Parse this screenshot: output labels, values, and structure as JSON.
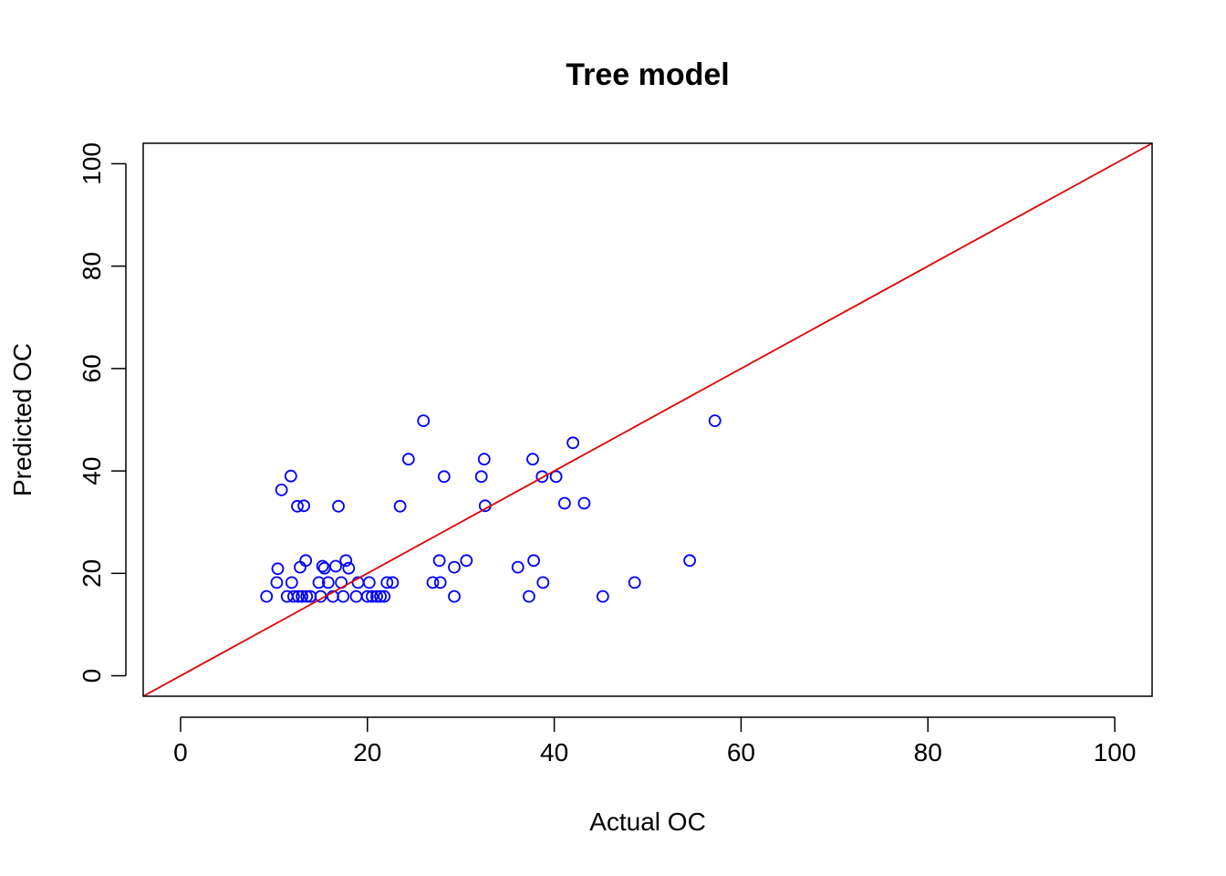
{
  "chart_data": {
    "type": "scatter",
    "title": "Tree model",
    "xlabel": "Actual OC",
    "ylabel": "Predicted OC",
    "xlim": [
      -4,
      104
    ],
    "ylim": [
      -4,
      104
    ],
    "x_ticks": [
      0,
      20,
      40,
      60,
      80,
      100
    ],
    "y_ticks": [
      0,
      20,
      40,
      60,
      80,
      100
    ],
    "grid": false,
    "legend": "none",
    "point_color": "#0000ff",
    "line_color": "#e00000",
    "reference_line": {
      "intercept": 0,
      "slope": 1
    },
    "points": [
      [
        9.2,
        15.5
      ],
      [
        10.3,
        18.2
      ],
      [
        10.4,
        20.9
      ],
      [
        10.8,
        36.3
      ],
      [
        11.4,
        15.5
      ],
      [
        11.8,
        39.0
      ],
      [
        11.9,
        18.2
      ],
      [
        12.1,
        15.5
      ],
      [
        12.5,
        33.1
      ],
      [
        12.6,
        15.5
      ],
      [
        12.8,
        21.2
      ],
      [
        13.0,
        15.5
      ],
      [
        13.2,
        33.2
      ],
      [
        13.4,
        22.5
      ],
      [
        13.5,
        15.5
      ],
      [
        13.9,
        15.5
      ],
      [
        14.8,
        18.2
      ],
      [
        15.0,
        15.5
      ],
      [
        15.2,
        21.4
      ],
      [
        15.4,
        21.0
      ],
      [
        15.8,
        18.2
      ],
      [
        16.3,
        15.5
      ],
      [
        16.6,
        21.4
      ],
      [
        16.9,
        33.1
      ],
      [
        17.2,
        18.2
      ],
      [
        17.4,
        15.5
      ],
      [
        17.7,
        22.5
      ],
      [
        18.0,
        21.0
      ],
      [
        18.8,
        15.5
      ],
      [
        19.0,
        18.2
      ],
      [
        20.0,
        15.5
      ],
      [
        20.2,
        18.2
      ],
      [
        20.5,
        15.5
      ],
      [
        21.0,
        15.5
      ],
      [
        21.4,
        15.5
      ],
      [
        21.8,
        15.5
      ],
      [
        22.1,
        18.2
      ],
      [
        22.7,
        18.2
      ],
      [
        23.5,
        33.1
      ],
      [
        24.4,
        42.3
      ],
      [
        26.0,
        49.8
      ],
      [
        27.0,
        18.2
      ],
      [
        27.7,
        22.5
      ],
      [
        27.8,
        18.2
      ],
      [
        28.2,
        38.9
      ],
      [
        29.3,
        15.5
      ],
      [
        29.3,
        21.2
      ],
      [
        30.6,
        22.5
      ],
      [
        32.2,
        38.9
      ],
      [
        32.5,
        42.3
      ],
      [
        32.6,
        33.2
      ],
      [
        36.1,
        21.2
      ],
      [
        37.3,
        15.5
      ],
      [
        37.7,
        42.3
      ],
      [
        37.8,
        22.5
      ],
      [
        38.7,
        38.9
      ],
      [
        38.8,
        18.2
      ],
      [
        40.2,
        38.9
      ],
      [
        41.1,
        33.7
      ],
      [
        42.0,
        45.5
      ],
      [
        43.2,
        33.7
      ],
      [
        45.2,
        15.5
      ],
      [
        48.6,
        18.2
      ],
      [
        54.5,
        22.5
      ],
      [
        57.2,
        49.8
      ]
    ]
  }
}
